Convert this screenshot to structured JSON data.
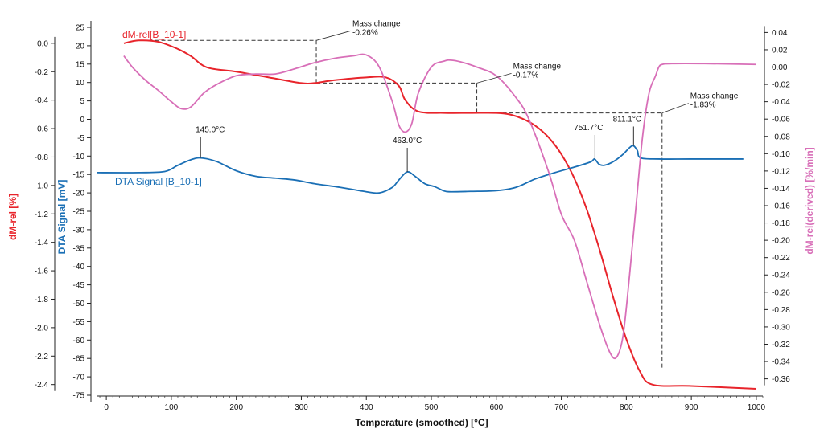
{
  "chart_data": {
    "type": "line",
    "title": "",
    "xlabel": "Temperature (smoothed) [°C]",
    "xlim": [
      -15,
      1010
    ],
    "x_ticks": [
      0,
      100,
      200,
      300,
      400,
      500,
      600,
      700,
      800,
      900,
      1000
    ],
    "left_axis": {
      "label": "dM-rel [%]",
      "color": "#e8242b",
      "range": [
        -2.43,
        0.05
      ],
      "ticks": [
        "0.0",
        "-0.2",
        "-0.4",
        "-0.6",
        "-0.8",
        "-1.0",
        "-1.2",
        "-1.4",
        "-1.6",
        "-1.8",
        "-2.0",
        "-2.2",
        "-2.4"
      ],
      "tick_values": [
        0.0,
        -0.2,
        -0.4,
        -0.6,
        -0.8,
        -1.0,
        -1.2,
        -1.4,
        -1.6,
        -1.8,
        -2.0,
        -2.2,
        -2.4
      ]
    },
    "mid_axis": {
      "label": "DTA Signal [mV]",
      "color": "#1a6fb5",
      "range": [
        -75,
        25
      ],
      "ticks": [
        "25",
        "20",
        "15",
        "10",
        "5",
        "0",
        "-5",
        "-10",
        "-15",
        "-20",
        "-25",
        "-30",
        "-35",
        "-40",
        "-45",
        "-50",
        "-55",
        "-60",
        "-65",
        "-70",
        "-75"
      ],
      "tick_values": [
        25,
        20,
        15,
        10,
        5,
        0,
        -5,
        -10,
        -15,
        -20,
        -25,
        -30,
        -35,
        -40,
        -45,
        -50,
        -55,
        -60,
        -65,
        -70,
        -75
      ]
    },
    "right_axis": {
      "label": "dM-rel(derived) [%/min]",
      "color": "#d86fb8",
      "range": [
        -0.365,
        0.045
      ],
      "ticks": [
        "0.04",
        "0.02",
        "0.00",
        "-0.02",
        "-0.04",
        "-0.06",
        "-0.08",
        "-0.10",
        "-0.12",
        "-0.14",
        "-0.16",
        "-0.18",
        "-0.20",
        "-0.22",
        "-0.24",
        "-0.26",
        "-0.28",
        "-0.30",
        "-0.32",
        "-0.34",
        "-0.36"
      ],
      "tick_values": [
        0.04,
        0.02,
        0.0,
        -0.02,
        -0.04,
        -0.06,
        -0.08,
        -0.1,
        -0.12,
        -0.14,
        -0.16,
        -0.18,
        -0.2,
        -0.22,
        -0.24,
        -0.26,
        -0.28,
        -0.3,
        -0.32,
        -0.34,
        -0.36
      ]
    },
    "series": [
      {
        "name": "dM-rel[B_10-1]",
        "axis": "left",
        "color": "#e8242b",
        "x": [
          27,
          50,
          80,
          110,
          130,
          155,
          200,
          250,
          300,
          320,
          350,
          400,
          430,
          450,
          460,
          480,
          520,
          560,
          600,
          620,
          640,
          660,
          680,
          700,
          720,
          740,
          760,
          780,
          800,
          820,
          840,
          900,
          1000
        ],
        "y": [
          0.0,
          0.02,
          0.01,
          -0.04,
          -0.09,
          -0.17,
          -0.2,
          -0.24,
          -0.28,
          -0.28,
          -0.26,
          -0.24,
          -0.24,
          -0.3,
          -0.4,
          -0.48,
          -0.49,
          -0.49,
          -0.49,
          -0.5,
          -0.53,
          -0.58,
          -0.66,
          -0.78,
          -0.95,
          -1.18,
          -1.47,
          -1.79,
          -2.08,
          -2.3,
          -2.4,
          -2.41,
          -2.43
        ]
      },
      {
        "name": "DTA Signal [B_10-1]",
        "axis": "mid",
        "color": "#1a6fb5",
        "x": [
          -15,
          50,
          90,
          110,
          130,
          145,
          170,
          200,
          230,
          260,
          290,
          320,
          360,
          400,
          420,
          440,
          450,
          463,
          475,
          490,
          505,
          520,
          530,
          560,
          600,
          630,
          660,
          690,
          720,
          745,
          751,
          758,
          766,
          780,
          795,
          805,
          811,
          817,
          822,
          850,
          900,
          980
        ],
        "y": [
          -14.5,
          -14.5,
          -14.2,
          -12.5,
          -11,
          -10.5,
          -11.5,
          -14,
          -15.5,
          -16,
          -16.5,
          -17.5,
          -18.5,
          -19.7,
          -20,
          -18.5,
          -16.5,
          -14.3,
          -15.5,
          -17.5,
          -18.3,
          -19.5,
          -19.7,
          -19.6,
          -19.4,
          -18.5,
          -16.2,
          -14.5,
          -13,
          -11.6,
          -10.8,
          -12.2,
          -12.5,
          -11.5,
          -9.5,
          -7.7,
          -7.2,
          -8.5,
          -10.5,
          -10.8,
          -10.8,
          -10.8
        ]
      },
      {
        "name": "dM-rel(derived)",
        "axis": "right",
        "color": "#d86fb8",
        "x": [
          27,
          40,
          60,
          80,
          100,
          115,
          130,
          150,
          170,
          200,
          230,
          260,
          290,
          320,
          350,
          380,
          400,
          420,
          440,
          450,
          460,
          470,
          480,
          500,
          520,
          530,
          545,
          570,
          600,
          630,
          650,
          680,
          700,
          720,
          740,
          760,
          775,
          785,
          795,
          805,
          815,
          825,
          835,
          845,
          850,
          855,
          870,
          920,
          1000
        ],
        "y": [
          0.013,
          0.0,
          -0.015,
          -0.027,
          -0.04,
          -0.048,
          -0.046,
          -0.03,
          -0.02,
          -0.01,
          -0.008,
          -0.008,
          -0.002,
          0.005,
          0.01,
          0.013,
          0.014,
          0.0,
          -0.04,
          -0.067,
          -0.075,
          -0.065,
          -0.03,
          0.0,
          0.007,
          0.008,
          0.006,
          0.0,
          -0.01,
          -0.035,
          -0.06,
          -0.12,
          -0.17,
          -0.2,
          -0.25,
          -0.3,
          -0.33,
          -0.335,
          -0.31,
          -0.24,
          -0.16,
          -0.08,
          -0.03,
          -0.01,
          0.0,
          0.003,
          0.004,
          0.004,
          0.003
        ]
      }
    ],
    "annotations": {
      "peaks": [
        {
          "label": "145.0°C",
          "x": 145,
          "y": -10.5
        },
        {
          "label": "463.0°C",
          "x": 463,
          "y": -14.3
        },
        {
          "label": "751.7°C",
          "x": 751.7,
          "y": -10.8
        },
        {
          "label": "811.1°C",
          "x": 811.1,
          "y": -7.2
        }
      ],
      "mass_changes": [
        {
          "title": "Mass change",
          "value": "-0.26%",
          "x": 323,
          "y_from": 0.02,
          "y_to": -0.28
        },
        {
          "title": "Mass change",
          "value": "-0.17%",
          "x": 570,
          "y_from": -0.28,
          "y_to": -0.49
        },
        {
          "title": "Mass change",
          "value": "-1.83%",
          "x": 855,
          "y_from": -0.49,
          "y_to": -2.4
        }
      ]
    }
  }
}
